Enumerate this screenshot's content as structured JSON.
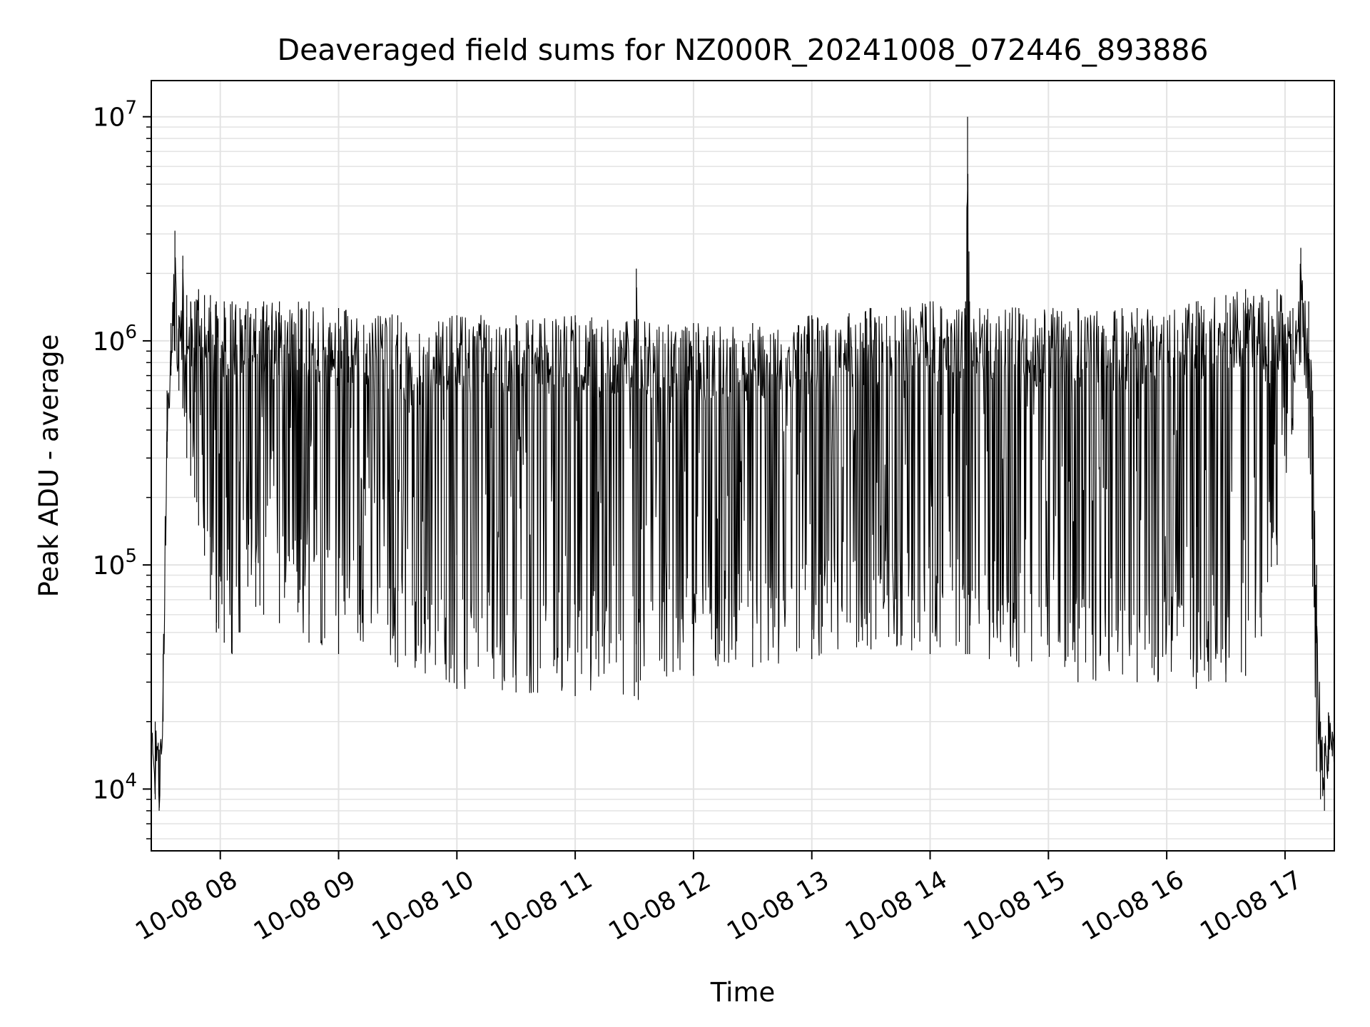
{
  "chart_data": {
    "type": "line",
    "title": "Deaveraged field sums for NZ000R_20241008_072446_893886",
    "xlabel": "Time",
    "ylabel": "Peak ADU - average",
    "yscale": "log",
    "ylim": [
      5300,
      14500000
    ],
    "xlim": [
      "2024-10-08 07:25",
      "2024-10-08 17:25"
    ],
    "grid": "major and minor",
    "line_color": "#000000",
    "x_tick_labels": [
      "10-08 08",
      "10-08 09",
      "10-08 10",
      "10-08 11",
      "10-08 12",
      "10-08 13",
      "10-08 14",
      "10-08 15",
      "10-08 16",
      "10-08 17"
    ],
    "x_ticks": [
      "2024-10-08 08:00",
      "2024-10-08 09:00",
      "2024-10-08 10:00",
      "2024-10-08 11:00",
      "2024-10-08 12:00",
      "2024-10-08 13:00",
      "2024-10-08 14:00",
      "2024-10-08 15:00",
      "2024-10-08 16:00",
      "2024-10-08 17:00"
    ],
    "y_ticks": [
      10000,
      100000,
      1000000,
      10000000
    ],
    "y_tick_labels": [
      {
        "base": "10",
        "exp": "4"
      },
      {
        "base": "10",
        "exp": "5"
      },
      {
        "base": "10",
        "exp": "6"
      },
      {
        "base": "10",
        "exp": "7"
      }
    ],
    "series": [
      {
        "x": [
          "2024-10-08 07:25",
          "2024-10-08 07:27",
          "2024-10-08 07:29",
          "2024-10-08 07:31",
          "2024-10-08 07:33",
          "2024-10-08 07:35",
          "2024-10-08 07:37",
          "2024-10-08 07:39",
          "2024-10-08 07:41",
          "2024-10-08 07:43",
          "2024-10-08 07:45",
          "2024-10-08 07:47",
          "2024-10-08 07:49",
          "2024-10-08 07:52",
          "2024-10-08 07:55",
          "2024-10-08 07:58",
          "2024-10-08 08:02",
          "2024-10-08 08:06",
          "2024-10-08 08:10",
          "2024-10-08 08:14",
          "2024-10-08 08:18",
          "2024-10-08 08:22",
          "2024-10-08 08:30",
          "2024-10-08 08:45",
          "2024-10-08 09:00",
          "2024-10-08 09:30",
          "2024-10-08 10:00",
          "2024-10-08 10:30",
          "2024-10-08 11:00",
          "2024-10-08 11:30",
          "2024-10-08 11:31",
          "2024-10-08 11:32",
          "2024-10-08 12:00",
          "2024-10-08 12:30",
          "2024-10-08 13:00",
          "2024-10-08 13:30",
          "2024-10-08 14:00",
          "2024-10-08 14:18",
          "2024-10-08 14:19",
          "2024-10-08 14:20",
          "2024-10-08 14:45",
          "2024-10-08 15:15",
          "2024-10-08 15:45",
          "2024-10-08 16:15",
          "2024-10-08 16:30",
          "2024-10-08 16:40",
          "2024-10-08 16:48",
          "2024-10-08 16:56",
          "2024-10-08 17:04",
          "2024-10-08 17:08",
          "2024-10-08 17:12",
          "2024-10-08 17:14",
          "2024-10-08 17:16",
          "2024-10-08 17:18",
          "2024-10-08 17:20",
          "2024-10-08 17:22",
          "2024-10-08 17:24",
          "2024-10-08 17:25"
        ],
        "y_upper": [
          17000,
          20000,
          15000,
          40000,
          600000,
          1200000,
          3100000,
          1300000,
          2400000,
          1600000,
          1500000,
          1500000,
          1700000,
          1600000,
          1600000,
          1500000,
          1500000,
          1500000,
          1400000,
          1500000,
          1400000,
          1500000,
          1500000,
          1500000,
          1400000,
          1300000,
          1300000,
          1300000,
          1300000,
          1250000,
          2100000,
          1250000,
          1200000,
          1200000,
          1300000,
          1400000,
          1500000,
          1500000,
          10000000,
          1500000,
          1400000,
          1400000,
          1400000,
          1500000,
          1600000,
          1700000,
          1600000,
          1700000,
          1400000,
          2600000,
          1500000,
          600000,
          100000,
          20000,
          16000,
          22000,
          18000,
          15000
        ],
        "y_lower": [
          13000,
          9000,
          8000,
          20000,
          300000,
          700000,
          900000,
          600000,
          500000,
          300000,
          250000,
          200000,
          150000,
          110000,
          70000,
          50000,
          45000,
          40000,
          50000,
          80000,
          65000,
          60000,
          55000,
          45000,
          40000,
          35000,
          28000,
          27000,
          26000,
          26000,
          30000,
          25000,
          32000,
          35000,
          38000,
          42000,
          40000,
          40000,
          40000,
          40000,
          35000,
          30000,
          30000,
          28000,
          30000,
          32000,
          48000,
          100000,
          400000,
          800000,
          300000,
          80000,
          12000,
          9000,
          8000,
          12000,
          14000,
          13000
        ]
      }
    ]
  }
}
